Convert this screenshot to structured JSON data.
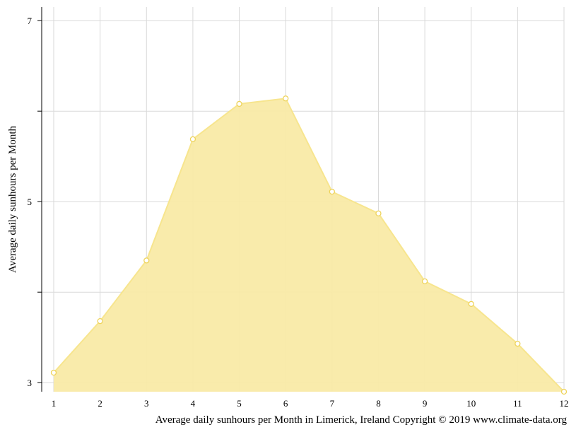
{
  "chart_data": {
    "type": "area",
    "title": "",
    "xlabel": "",
    "ylabel": "Average daily sunhours per Month",
    "caption": "Average daily sunhours per Month in Limerick, Ireland Copyright © 2019 www.climate-data.org",
    "categories": [
      "1",
      "2",
      "3",
      "4",
      "5",
      "6",
      "7",
      "8",
      "9",
      "10",
      "11",
      "12"
    ],
    "values": [
      3.11,
      3.68,
      4.35,
      5.69,
      6.08,
      6.14,
      5.11,
      4.87,
      4.12,
      3.87,
      3.43,
      2.9
    ],
    "ylim": [
      2.9,
      7.15
    ],
    "y_ticks": [
      3,
      5,
      7
    ],
    "grid": true,
    "legend": "none",
    "colors": {
      "fill": "#f9eaa6",
      "line": "#f7e58e",
      "point_stroke": "#eed35a",
      "grid": "#d9d9d9",
      "axis": "#000000"
    }
  }
}
